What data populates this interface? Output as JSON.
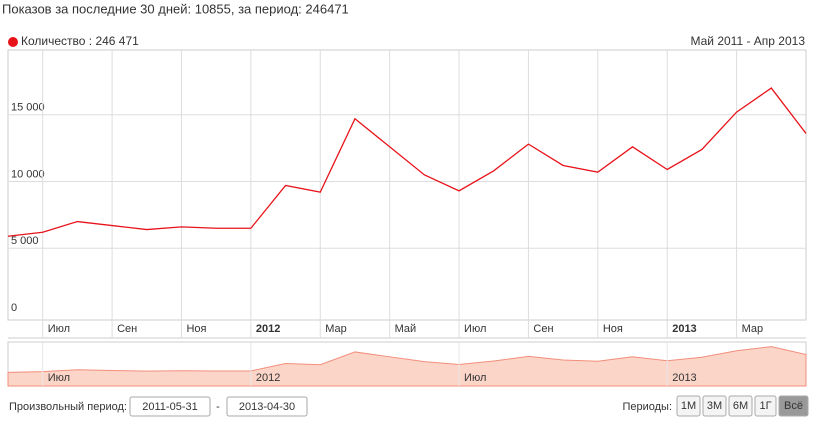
{
  "header": {
    "text": "Показов за последние 30 дней: 10855, за период: 246471"
  },
  "chart_data": {
    "type": "line",
    "range_label": "Май 2011 - Апр 2013",
    "categories": [
      null,
      "Июл",
      null,
      "Сен",
      null,
      "Ноя",
      null,
      "2012",
      null,
      "Мар",
      null,
      "Май",
      null,
      "Июл",
      null,
      "Сен",
      null,
      "Ноя",
      null,
      "2013",
      null,
      "Мар",
      null,
      null
    ],
    "series": [
      {
        "name": "Количество : 246 471",
        "color": "#e8131a",
        "values": [
          5900,
          6200,
          7000,
          6700,
          6400,
          6600,
          6500,
          6500,
          9700,
          9200,
          14700,
          12600,
          10500,
          9300,
          10800,
          12800,
          11200,
          10700,
          12600,
          10900,
          12400,
          15200,
          17000,
          13600
        ]
      }
    ],
    "ylim": [
      0,
      20000
    ],
    "yticks": [
      0,
      {
        "value": 5000,
        "label": "5 000"
      },
      {
        "value": 10000,
        "label": "10 000"
      },
      {
        "value": 15000,
        "label": "15 000"
      }
    ],
    "grid": true
  },
  "navigator": {
    "labels": [
      "Июл",
      "2012",
      "Июл",
      "2013"
    ]
  },
  "controls": {
    "custom_label": "Произвольный период:",
    "from": "2011-05-31",
    "dash": "-",
    "to": "2013-04-30",
    "periods_label": "Периоды:",
    "buttons": [
      "1М",
      "3М",
      "6М",
      "1Г",
      "Всё"
    ],
    "active": 4
  }
}
